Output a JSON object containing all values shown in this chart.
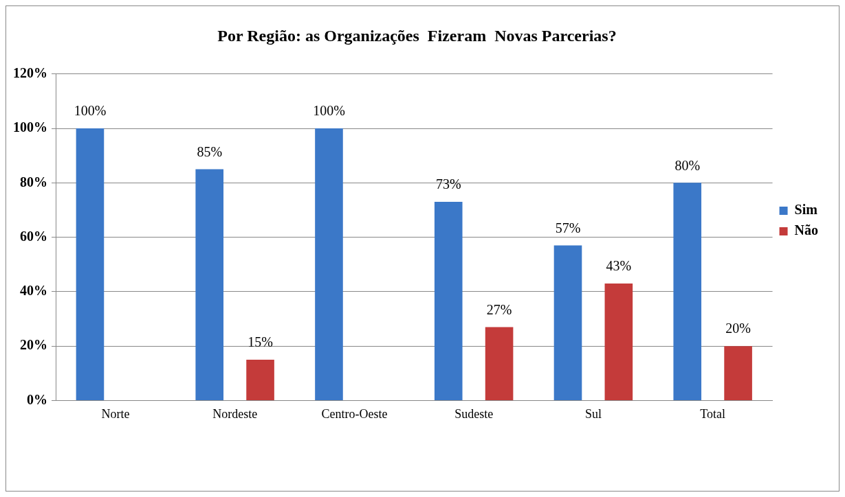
{
  "chart_data": {
    "type": "bar",
    "title": "Por Região: as Organizações  Fizeram  Novas Parcerias?",
    "categories": [
      "Norte",
      "Nordeste",
      "Centro-Oeste",
      "Sudeste",
      "Sul",
      "Total"
    ],
    "series": [
      {
        "name": "Sim",
        "color": "#3b78c8",
        "values": [
          100,
          85,
          100,
          73,
          57,
          80
        ],
        "value_labels": [
          "100%",
          "85%",
          "100%",
          "73%",
          "57%",
          "80%"
        ]
      },
      {
        "name": "Não",
        "color": "#c43b3a",
        "values": [
          null,
          15,
          null,
          27,
          43,
          20
        ],
        "value_labels": [
          null,
          "15%",
          null,
          "27%",
          "43%",
          "20%"
        ]
      }
    ],
    "ylim": [
      0,
      120
    ],
    "yticks": [
      {
        "value": 0,
        "label": "0%"
      },
      {
        "value": 20,
        "label": "20%"
      },
      {
        "value": 40,
        "label": "40%"
      },
      {
        "value": 60,
        "label": "60%"
      },
      {
        "value": 80,
        "label": "80%"
      },
      {
        "value": 100,
        "label": "100%"
      },
      {
        "value": 120,
        "label": "120%"
      }
    ],
    "grid": "y",
    "legend": "right"
  }
}
